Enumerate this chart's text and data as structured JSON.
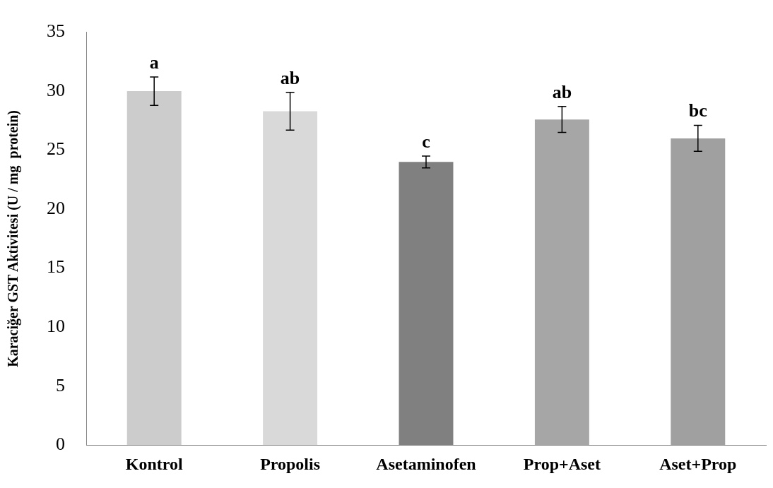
{
  "chart_data": {
    "type": "bar",
    "ylabel": "Karaciğer GST Aktivitesi (U / mg  protein)",
    "categories": [
      "Kontrol",
      "Propolis",
      "Asetaminofen",
      "Prop+Aset",
      "Aset+Prop"
    ],
    "values": [
      30.0,
      28.3,
      24.0,
      27.6,
      26.0
    ],
    "errors": [
      1.2,
      1.6,
      0.5,
      1.1,
      1.1
    ],
    "colors": [
      "#cccccc",
      "#d9d9d9",
      "#808080",
      "#a6a6a6",
      "#a0a0a0"
    ],
    "ylim": [
      0,
      35
    ],
    "yticks": [
      0,
      5,
      10,
      15,
      20,
      25,
      30,
      35
    ],
    "grid": false,
    "legend": false,
    "annotations": [
      {
        "text": "a",
        "x": "Kontrol",
        "y": 31.2
      },
      {
        "text": "ab",
        "x": "Propolis",
        "y": 29.9
      },
      {
        "text": "c",
        "x": "Asetaminofen",
        "y": 24.5
      },
      {
        "text": "ab",
        "x": "Prop+Aset",
        "y": 28.7
      },
      {
        "text": "bc",
        "x": "Aset+Prop",
        "y": 27.1
      }
    ]
  }
}
